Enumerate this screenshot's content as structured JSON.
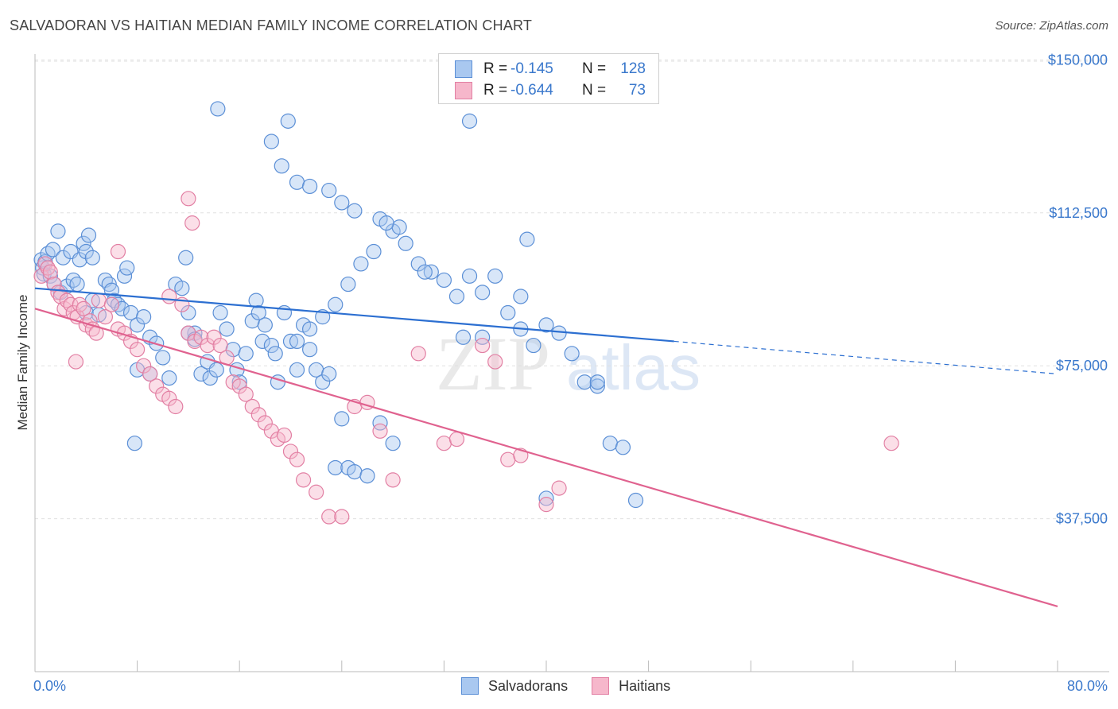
{
  "title": "SALVADORAN VS HAITIAN MEDIAN FAMILY INCOME CORRELATION CHART",
  "source": "Source: ZipAtlas.com",
  "watermark": {
    "zip": "ZIP",
    "atlas": "atlas"
  },
  "colors": {
    "blue_fill": "#a9c8f0",
    "blue_stroke": "#5b8fd6",
    "blue_line": "#2c6fd1",
    "pink_fill": "#f6b7cb",
    "pink_stroke": "#e27fa3",
    "pink_line": "#e0628f",
    "tick_text": "#3a78cc",
    "grid": "#e0e0e0"
  },
  "legend": {
    "rows": [
      {
        "r_label": "R =",
        "r_value": "-0.145",
        "n_label": "N =",
        "n_value": "128"
      },
      {
        "r_label": "R =",
        "r_value": "-0.644",
        "n_label": "N =",
        "n_value": "73"
      }
    ]
  },
  "chart_data": {
    "type": "scatter",
    "ylabel": "Median Family Income",
    "xlim": [
      0,
      80
    ],
    "ylim": [
      0,
      153000
    ],
    "x_tick_labels": [
      "0.0%",
      "80.0%"
    ],
    "y_ticks": [
      37500,
      75000,
      112500,
      150000
    ],
    "y_tick_labels": [
      "$37,500",
      "$75,000",
      "$112,500",
      "$150,000"
    ],
    "grid": "horizontal dashed",
    "series": [
      {
        "name": "Salvadorans",
        "trend": {
          "x": [
            0,
            50
          ],
          "y": [
            94000,
            81000
          ],
          "dashed_to": [
            80,
            73000
          ]
        },
        "points": [
          [
            0.5,
            101000
          ],
          [
            0.6,
            99000
          ],
          [
            0.7,
            97500
          ],
          [
            0.8,
            100500
          ],
          [
            1.0,
            102500
          ],
          [
            1.2,
            97000
          ],
          [
            1.4,
            103500
          ],
          [
            1.5,
            95000
          ],
          [
            1.8,
            108000
          ],
          [
            2.0,
            93000
          ],
          [
            2.2,
            101500
          ],
          [
            2.5,
            94500
          ],
          [
            2.8,
            103000
          ],
          [
            3.0,
            96000
          ],
          [
            3.3,
            95000
          ],
          [
            3.5,
            101000
          ],
          [
            3.8,
            105000
          ],
          [
            4.0,
            103000
          ],
          [
            4.2,
            107000
          ],
          [
            4.5,
            101500
          ],
          [
            4.0,
            88000
          ],
          [
            4.5,
            91000
          ],
          [
            5.0,
            87500
          ],
          [
            5.5,
            96000
          ],
          [
            5.8,
            95000
          ],
          [
            6.0,
            93500
          ],
          [
            6.2,
            91000
          ],
          [
            6.5,
            90000
          ],
          [
            6.8,
            89000
          ],
          [
            7.0,
            97000
          ],
          [
            7.2,
            99000
          ],
          [
            7.5,
            88000
          ],
          [
            8.0,
            85000
          ],
          [
            8.5,
            87000
          ],
          [
            9.0,
            82000
          ],
          [
            9.5,
            80500
          ],
          [
            8.0,
            74000
          ],
          [
            9.0,
            73000
          ],
          [
            10.0,
            77000
          ],
          [
            10.5,
            72000
          ],
          [
            11.0,
            95000
          ],
          [
            11.5,
            94000
          ],
          [
            12.0,
            88000
          ],
          [
            12.5,
            83000
          ],
          [
            13.0,
            73000
          ],
          [
            11.8,
            101500
          ],
          [
            12.0,
            83000
          ],
          [
            12.5,
            81500
          ],
          [
            13.5,
            76000
          ],
          [
            13.7,
            72000
          ],
          [
            14.2,
            74000
          ],
          [
            14.5,
            88000
          ],
          [
            15.0,
            84000
          ],
          [
            15.5,
            79000
          ],
          [
            15.8,
            74000
          ],
          [
            16.0,
            71000
          ],
          [
            16.5,
            78000
          ],
          [
            17.0,
            86000
          ],
          [
            17.3,
            91000
          ],
          [
            17.5,
            88000
          ],
          [
            17.8,
            81000
          ],
          [
            18.0,
            85000
          ],
          [
            18.5,
            80000
          ],
          [
            18.8,
            78000
          ],
          [
            19.0,
            71000
          ],
          [
            19.5,
            88000
          ],
          [
            20.0,
            81000
          ],
          [
            20.5,
            74000
          ],
          [
            21.0,
            85000
          ],
          [
            21.5,
            79000
          ],
          [
            22.0,
            74000
          ],
          [
            22.5,
            71000
          ],
          [
            23.0,
            73000
          ],
          [
            24.0,
            62000
          ],
          [
            23.5,
            50000
          ],
          [
            24.5,
            50000
          ],
          [
            25.0,
            49000
          ],
          [
            26.0,
            48000
          ],
          [
            27.0,
            61000
          ],
          [
            28.0,
            56000
          ],
          [
            14.3,
            138000
          ],
          [
            19.8,
            135000
          ],
          [
            18.5,
            130000
          ],
          [
            19.3,
            124000
          ],
          [
            20.5,
            120000
          ],
          [
            21.5,
            119000
          ],
          [
            23.0,
            118000
          ],
          [
            24.0,
            115000
          ],
          [
            25.0,
            113000
          ],
          [
            27.0,
            111000
          ],
          [
            28.0,
            108000
          ],
          [
            29.0,
            105000
          ],
          [
            30.0,
            100000
          ],
          [
            31.0,
            98000
          ],
          [
            32.0,
            96000
          ],
          [
            33.0,
            92000
          ],
          [
            34.0,
            97000
          ],
          [
            35.0,
            93000
          ],
          [
            36.0,
            97000
          ],
          [
            37.0,
            88000
          ],
          [
            38.0,
            84000
          ],
          [
            39.0,
            80000
          ],
          [
            40.0,
            85000
          ],
          [
            41.0,
            83000
          ],
          [
            42.0,
            78000
          ],
          [
            43.0,
            71000
          ],
          [
            44.0,
            70000
          ],
          [
            45.0,
            56000
          ],
          [
            46.0,
            55000
          ],
          [
            47.0,
            42000
          ],
          [
            35.0,
            82000
          ],
          [
            33.5,
            82000
          ],
          [
            30.5,
            98000
          ],
          [
            28.5,
            109000
          ],
          [
            27.5,
            110000
          ],
          [
            26.5,
            103000
          ],
          [
            25.5,
            100000
          ],
          [
            24.5,
            95000
          ],
          [
            23.5,
            90000
          ],
          [
            22.5,
            87000
          ],
          [
            21.5,
            84000
          ],
          [
            20.5,
            81000
          ],
          [
            34.0,
            135000
          ],
          [
            38.5,
            106000
          ],
          [
            44.0,
            71000
          ],
          [
            40.0,
            42500
          ],
          [
            38.0,
            92000
          ],
          [
            7.8,
            56000
          ]
        ]
      },
      {
        "name": "Haitians",
        "trend": {
          "x": [
            0,
            80
          ],
          "y": [
            89000,
            16000
          ]
        },
        "points": [
          [
            0.5,
            97000
          ],
          [
            0.8,
            100000
          ],
          [
            1.0,
            99000
          ],
          [
            1.2,
            98000
          ],
          [
            1.5,
            95000
          ],
          [
            1.8,
            93000
          ],
          [
            2.0,
            92000
          ],
          [
            2.3,
            89000
          ],
          [
            2.5,
            91000
          ],
          [
            2.8,
            90000
          ],
          [
            3.0,
            88000
          ],
          [
            3.3,
            87000
          ],
          [
            3.5,
            90000
          ],
          [
            3.8,
            89000
          ],
          [
            4.0,
            85000
          ],
          [
            4.3,
            86000
          ],
          [
            4.5,
            84000
          ],
          [
            4.8,
            83000
          ],
          [
            5.0,
            91000
          ],
          [
            5.5,
            87000
          ],
          [
            6.0,
            90000
          ],
          [
            6.5,
            84000
          ],
          [
            7.0,
            83000
          ],
          [
            7.5,
            81000
          ],
          [
            8.0,
            79000
          ],
          [
            8.5,
            75000
          ],
          [
            9.0,
            73000
          ],
          [
            9.5,
            70000
          ],
          [
            10.0,
            68000
          ],
          [
            10.5,
            67000
          ],
          [
            11.0,
            65000
          ],
          [
            11.5,
            90000
          ],
          [
            12.0,
            83000
          ],
          [
            12.5,
            81000
          ],
          [
            13.0,
            82000
          ],
          [
            13.5,
            80000
          ],
          [
            14.0,
            82000
          ],
          [
            14.5,
            80000
          ],
          [
            15.0,
            77000
          ],
          [
            15.5,
            71000
          ],
          [
            16.0,
            70000
          ],
          [
            16.5,
            68000
          ],
          [
            17.0,
            65000
          ],
          [
            17.5,
            63000
          ],
          [
            18.0,
            61000
          ],
          [
            18.5,
            59000
          ],
          [
            19.0,
            57000
          ],
          [
            19.5,
            58000
          ],
          [
            20.0,
            54000
          ],
          [
            20.5,
            52000
          ],
          [
            21.0,
            47000
          ],
          [
            22.0,
            44000
          ],
          [
            23.0,
            38000
          ],
          [
            24.0,
            38000
          ],
          [
            25.0,
            65000
          ],
          [
            26.0,
            66000
          ],
          [
            27.0,
            59000
          ],
          [
            28.0,
            47000
          ],
          [
            30.0,
            78000
          ],
          [
            32.0,
            56000
          ],
          [
            33.0,
            57000
          ],
          [
            35.0,
            80000
          ],
          [
            36.0,
            76000
          ],
          [
            37.0,
            52000
          ],
          [
            38.0,
            53000
          ],
          [
            40.0,
            41000
          ],
          [
            41.0,
            45000
          ],
          [
            12.0,
            116000
          ],
          [
            12.3,
            110000
          ],
          [
            6.5,
            103000
          ],
          [
            10.5,
            92000
          ],
          [
            67.0,
            56000
          ],
          [
            3.2,
            76000
          ]
        ]
      }
    ]
  }
}
